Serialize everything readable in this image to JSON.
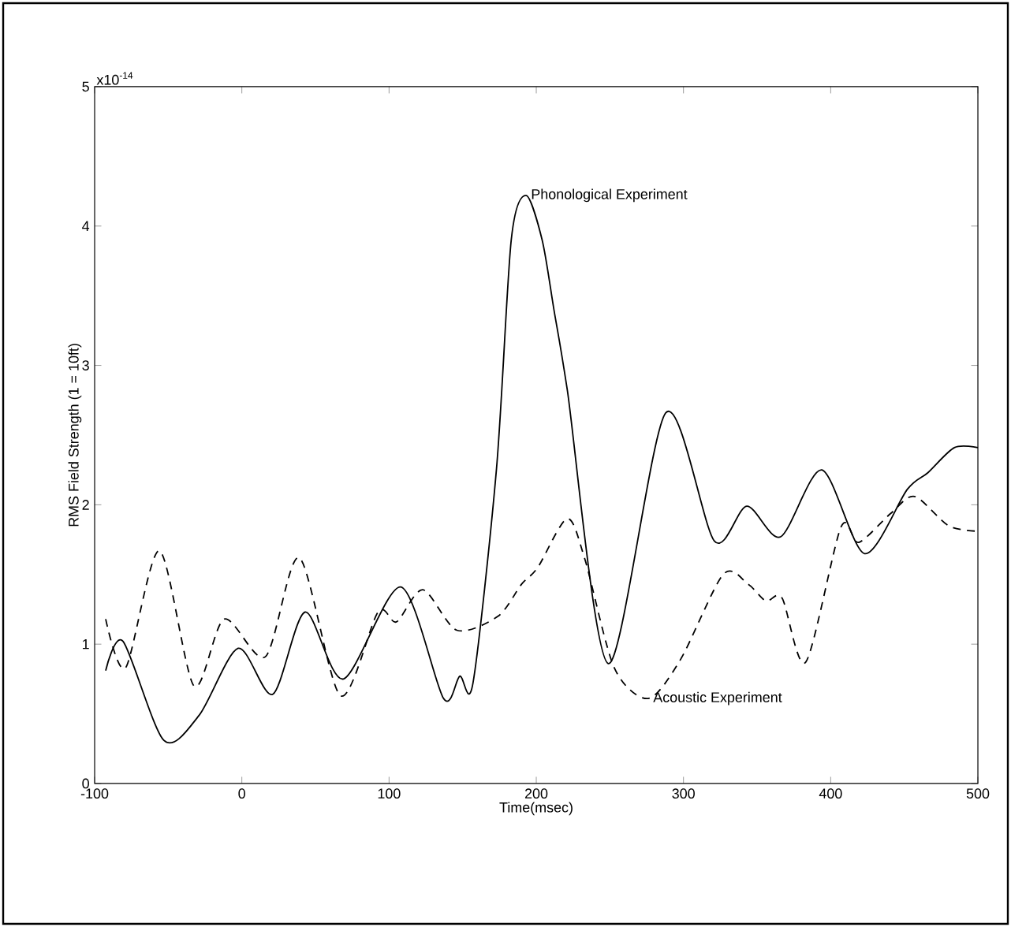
{
  "chart_data": {
    "type": "line",
    "xlabel": "Time(msec)",
    "ylabel": "RMS Field Strength (1 = 10ft)",
    "xlim": [
      -100,
      500
    ],
    "ylim": [
      0,
      5
    ],
    "xticks": [
      -100,
      0,
      100,
      200,
      300,
      400,
      500
    ],
    "yticks": [
      0,
      1,
      2,
      3,
      4,
      5
    ],
    "annotations": [
      "x10$^{-14}$",
      {
        "text": "Phonological Experiment",
        "x": 193,
        "y": 4.22
      },
      {
        "text": "Acoustic Experiment",
        "x": 276,
        "y": 0.61
      }
    ],
    "series": [
      {
        "color": "#000000",
        "line_style": "solid",
        "x": [
          -92.5,
          -80.7,
          -53,
          -29,
          -2.5,
          21,
          43,
          69,
          108,
          137,
          148,
          157,
          173,
          183,
          193,
          204,
          212,
          221,
          249,
          288,
          321,
          343,
          366,
          394,
          423,
          452,
          466,
          484,
          500
        ],
        "values": [
          0.81,
          1.02,
          0.31,
          0.49,
          0.97,
          0.64,
          1.23,
          0.75,
          1.41,
          0.61,
          0.77,
          0.72,
          2.26,
          3.9,
          4.22,
          3.9,
          3.4,
          2.83,
          0.86,
          2.66,
          1.74,
          1.99,
          1.77,
          2.25,
          1.65,
          2.11,
          2.23,
          2.41,
          2.41
        ]
      },
      {
        "color": "#000000",
        "line_style": "dashed",
        "x": [
          -92.5,
          -79,
          -56,
          -32.5,
          -12,
          16,
          39,
          67,
          92.5,
          105,
          123,
          146,
          174,
          190,
          201,
          221,
          233,
          253,
          276,
          298,
          327,
          344,
          356,
          367,
          383,
          407,
          419,
          441,
          457,
          480,
          500
        ],
        "values": [
          1.18,
          0.83,
          1.67,
          0.7,
          1.18,
          0.91,
          1.62,
          0.63,
          1.23,
          1.16,
          1.39,
          1.1,
          1.2,
          1.43,
          1.55,
          1.9,
          1.61,
          0.83,
          0.61,
          0.89,
          1.5,
          1.43,
          1.31,
          1.33,
          0.87,
          1.84,
          1.73,
          1.94,
          2.06,
          1.85,
          1.81
        ]
      }
    ]
  }
}
